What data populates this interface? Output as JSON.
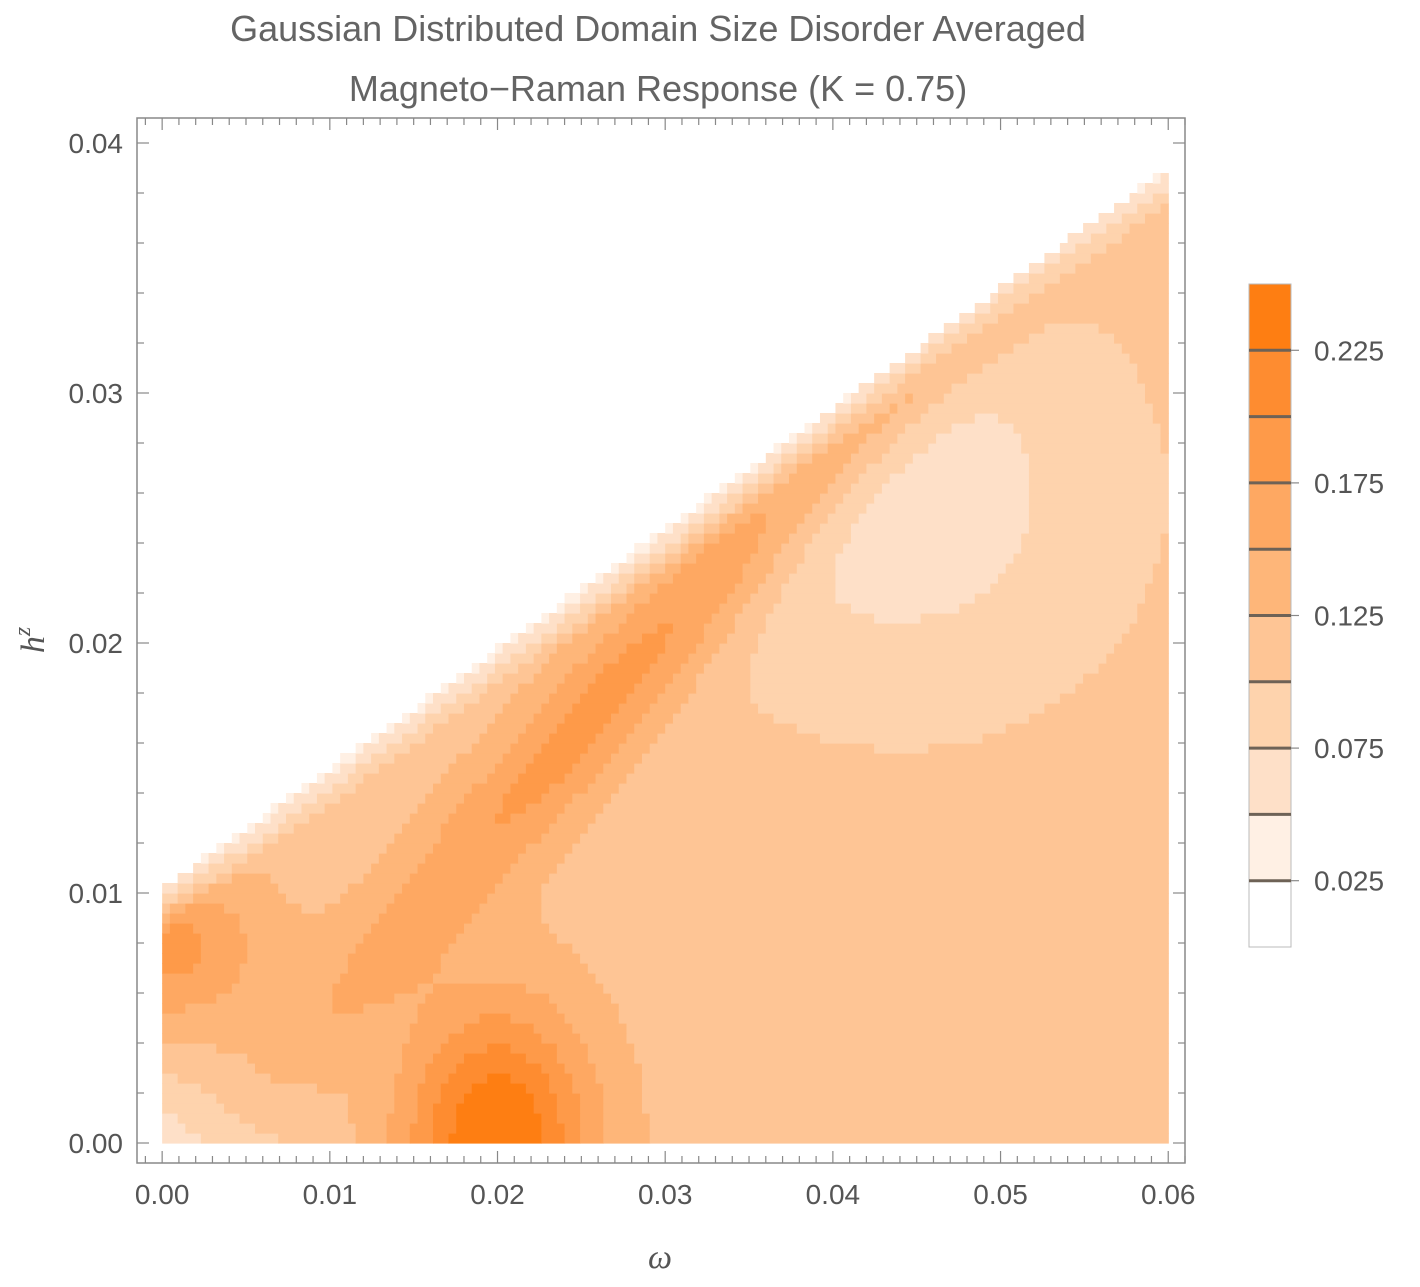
{
  "chart_data": {
    "type": "heatmap",
    "title_line1": "Gaussian Distributed Domain Size Disorder Averaged",
    "title_line2": "Magneto−Raman Response (K = 0.75)",
    "xlabel": "ω",
    "ylabel_base": "h",
    "ylabel_sup": "z",
    "xlim": [
      -0.0015,
      0.061
    ],
    "ylim": [
      -0.0008,
      0.041
    ],
    "x_ticks": [
      "0.00",
      "0.01",
      "0.02",
      "0.03",
      "0.04",
      "0.05",
      "0.06"
    ],
    "y_ticks": [
      "0.00",
      "0.01",
      "0.02",
      "0.03",
      "0.04"
    ],
    "colorbar": {
      "range": [
        0,
        0.25
      ],
      "tick_labels": [
        "0.225",
        "0.175",
        "0.125",
        "0.075",
        "0.025"
      ],
      "levels": [
        0.025,
        0.05,
        0.075,
        0.1,
        0.125,
        0.15,
        0.175,
        0.2,
        0.225
      ],
      "colors": [
        "#ffffff",
        "#fff0e4",
        "#fee0c8",
        "#fed3ad",
        "#fec595",
        "#feb679",
        "#fea862",
        "#fe9a49",
        "#fe8c30",
        "#fe7e12"
      ]
    },
    "data_description_regions": {
      "domain": "response nonzero for h^z below a line rising from about (0.0, 0.010) to (0.060, 0.039)",
      "peak": {
        "omega": 0.02,
        "hz": 0.0005,
        "value": 0.24
      },
      "secondary_ridge": {
        "omega": 0.001,
        "hz": 0.0078,
        "value": 0.17
      }
    }
  }
}
